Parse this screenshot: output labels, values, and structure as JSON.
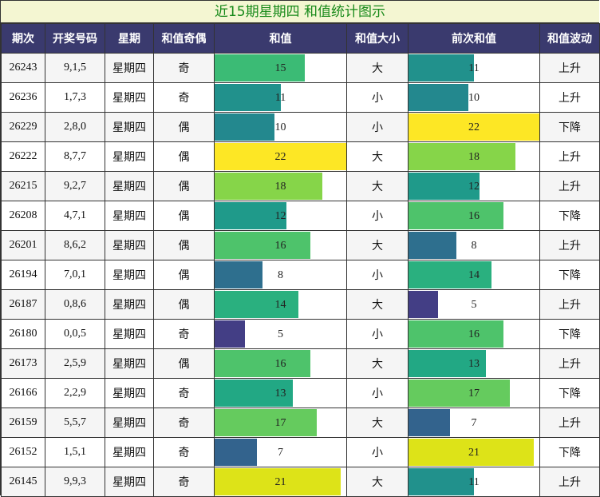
{
  "title": "近15期星期四 和值统计图示",
  "headers": [
    "期次",
    "开奖号码",
    "星期",
    "和值奇偶",
    "和值",
    "和值大小",
    "前次和值",
    "和值波动"
  ],
  "chart_data": {
    "type": "table",
    "max_value": 22,
    "columns": [
      "期次",
      "开奖号码",
      "星期",
      "和值奇偶",
      "和值",
      "和值大小",
      "前次和值",
      "和值波动"
    ],
    "rows": [
      {
        "issue": "26243",
        "numbers": "9,1,5",
        "weekday": "星期四",
        "parity": "奇",
        "sum": 15,
        "size": "大",
        "prev_sum": 11,
        "trend": "上升"
      },
      {
        "issue": "26236",
        "numbers": "1,7,3",
        "weekday": "星期四",
        "parity": "奇",
        "sum": 11,
        "size": "小",
        "prev_sum": 10,
        "trend": "上升"
      },
      {
        "issue": "26229",
        "numbers": "2,8,0",
        "weekday": "星期四",
        "parity": "偶",
        "sum": 10,
        "size": "小",
        "prev_sum": 22,
        "trend": "下降"
      },
      {
        "issue": "26222",
        "numbers": "8,7,7",
        "weekday": "星期四",
        "parity": "偶",
        "sum": 22,
        "size": "大",
        "prev_sum": 18,
        "trend": "上升"
      },
      {
        "issue": "26215",
        "numbers": "9,2,7",
        "weekday": "星期四",
        "parity": "偶",
        "sum": 18,
        "size": "大",
        "prev_sum": 12,
        "trend": "上升"
      },
      {
        "issue": "26208",
        "numbers": "4,7,1",
        "weekday": "星期四",
        "parity": "偶",
        "sum": 12,
        "size": "小",
        "prev_sum": 16,
        "trend": "下降"
      },
      {
        "issue": "26201",
        "numbers": "8,6,2",
        "weekday": "星期四",
        "parity": "偶",
        "sum": 16,
        "size": "大",
        "prev_sum": 8,
        "trend": "上升"
      },
      {
        "issue": "26194",
        "numbers": "7,0,1",
        "weekday": "星期四",
        "parity": "偶",
        "sum": 8,
        "size": "小",
        "prev_sum": 14,
        "trend": "下降"
      },
      {
        "issue": "26187",
        "numbers": "0,8,6",
        "weekday": "星期四",
        "parity": "偶",
        "sum": 14,
        "size": "大",
        "prev_sum": 5,
        "trend": "上升"
      },
      {
        "issue": "26180",
        "numbers": "0,0,5",
        "weekday": "星期四",
        "parity": "奇",
        "sum": 5,
        "size": "小",
        "prev_sum": 16,
        "trend": "下降"
      },
      {
        "issue": "26173",
        "numbers": "2,5,9",
        "weekday": "星期四",
        "parity": "偶",
        "sum": 16,
        "size": "大",
        "prev_sum": 13,
        "trend": "上升"
      },
      {
        "issue": "26166",
        "numbers": "2,2,9",
        "weekday": "星期四",
        "parity": "奇",
        "sum": 13,
        "size": "小",
        "prev_sum": 17,
        "trend": "下降"
      },
      {
        "issue": "26159",
        "numbers": "5,5,7",
        "weekday": "星期四",
        "parity": "奇",
        "sum": 17,
        "size": "大",
        "prev_sum": 7,
        "trend": "上升"
      },
      {
        "issue": "26152",
        "numbers": "1,5,1",
        "weekday": "星期四",
        "parity": "奇",
        "sum": 7,
        "size": "小",
        "prev_sum": 21,
        "trend": "下降"
      },
      {
        "issue": "26145",
        "numbers": "9,9,3",
        "weekday": "星期四",
        "parity": "奇",
        "sum": 21,
        "size": "大",
        "prev_sum": 11,
        "trend": "上升"
      }
    ]
  },
  "colors": {
    "header_bg": "#3a3a6e",
    "title_bg": "#f4f6d2",
    "title_text": "#188a1a",
    "scale": {
      "5": "#433e85",
      "7": "#33638d",
      "8": "#2e6f8e",
      "10": "#23888e",
      "11": "#21918c",
      "12": "#1f9a8a",
      "13": "#22a884",
      "14": "#2ab07f",
      "15": "#3bbb75",
      "16": "#4ec36b",
      "17": "#65cb5e",
      "18": "#86d549",
      "21": "#dde318",
      "22": "#fde725"
    }
  }
}
